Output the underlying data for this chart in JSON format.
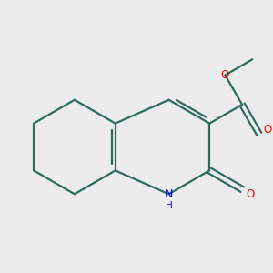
{
  "bg_color": "#ececec",
  "bond_color": "#2d6b5e",
  "bond_width": 1.6,
  "atom_colors": {
    "N": "#0000ff",
    "O": "#ff0000",
    "C": "#2d6b5e"
  },
  "font_size": 8.5,
  "figsize": [
    3.0,
    3.0
  ],
  "dpi": 100,
  "scale": 0.9
}
